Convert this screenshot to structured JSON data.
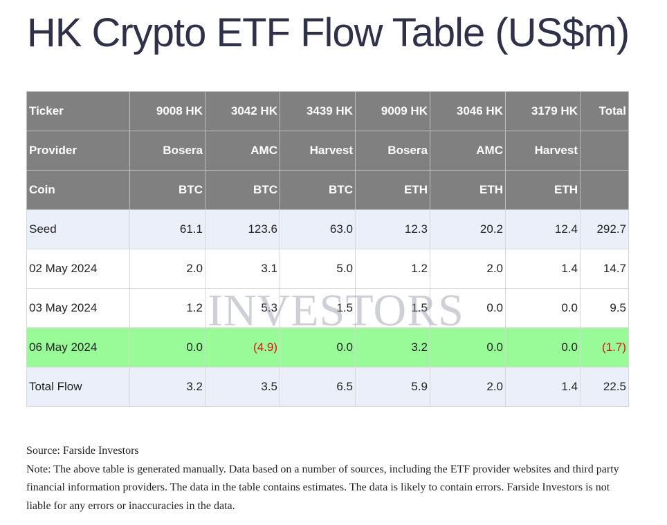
{
  "title": "HK Crypto ETF Flow Table (US$m)",
  "header_rows": [
    {
      "label": "Ticker",
      "cells": [
        "9008 HK",
        "3042 HK",
        "3439 HK",
        "9009 HK",
        "3046 HK",
        "3179 HK",
        "Total"
      ]
    },
    {
      "label": "Provider",
      "cells": [
        "Bosera",
        "AMC",
        "Harvest",
        "Bosera",
        "AMC",
        "Harvest",
        ""
      ]
    },
    {
      "label": "Coin",
      "cells": [
        "BTC",
        "BTC",
        "BTC",
        "ETH",
        "ETH",
        "ETH",
        ""
      ]
    }
  ],
  "rows": [
    {
      "label": "Seed",
      "cells": [
        "61.1",
        "123.6",
        "63.0",
        "12.3",
        "20.2",
        "12.4",
        "292.7"
      ]
    },
    {
      "label": "02 May 2024",
      "cells": [
        "2.0",
        "3.1",
        "5.0",
        "1.2",
        "2.0",
        "1.4",
        "14.7"
      ]
    },
    {
      "label": "03 May 2024",
      "cells": [
        "1.2",
        "5.3",
        "1.5",
        "1.5",
        "0.0",
        "0.0",
        "9.5"
      ]
    },
    {
      "label": "06 May 2024",
      "cells": [
        "0.0",
        "(4.9)",
        "0.0",
        "3.2",
        "0.0",
        "0.0",
        "(1.7)"
      ]
    },
    {
      "label": "Total Flow",
      "cells": [
        "3.2",
        "3.5",
        "6.5",
        "5.9",
        "2.0",
        "1.4",
        "22.5"
      ]
    }
  ],
  "watermark": "INVESTORS",
  "source": "Source: Farside Investors",
  "note": "Note: The above table is generated manually. Data based on a number of sources, including the ETF provider websites and third party financial information providers. The data in the table contains estimates. The data is likely to contain errors. Farside Investors is not liable for any errors or inaccuracies in the data.",
  "colors": {
    "header_bg": "#808080",
    "row_blue": "#eaeff9",
    "row_green": "#98fb98",
    "negative": "#dd1111",
    "title": "#2e3148"
  }
}
